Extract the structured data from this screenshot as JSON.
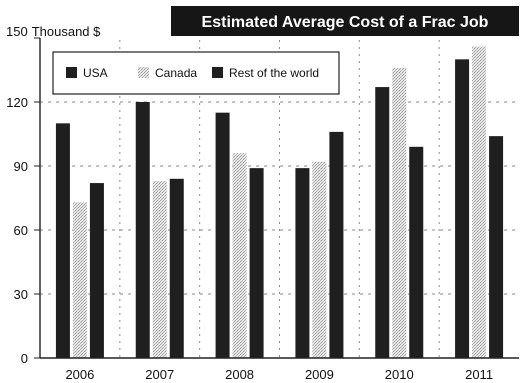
{
  "chart_data": {
    "type": "bar",
    "title": "Estimated Average Cost of a Frac Job",
    "y_unit_label": "Thousand $",
    "categories": [
      "2006",
      "2007",
      "2008",
      "2009",
      "2010",
      "2011"
    ],
    "series": [
      {
        "name": "USA",
        "values": [
          110,
          120,
          115,
          89,
          127,
          140
        ],
        "color": "#1f1f1f"
      },
      {
        "name": "Canada",
        "values": [
          73,
          83,
          96,
          92,
          136,
          146
        ],
        "color": "#c8c8c8"
      },
      {
        "name": "Rest of the world",
        "values": [
          82,
          84,
          89,
          106,
          99,
          104
        ],
        "color": "#1f1f1f"
      }
    ],
    "ylim": [
      0,
      150
    ],
    "yticks": [
      0,
      30,
      60,
      90,
      120,
      150
    ],
    "grid": true,
    "legend_position": "top-left"
  }
}
